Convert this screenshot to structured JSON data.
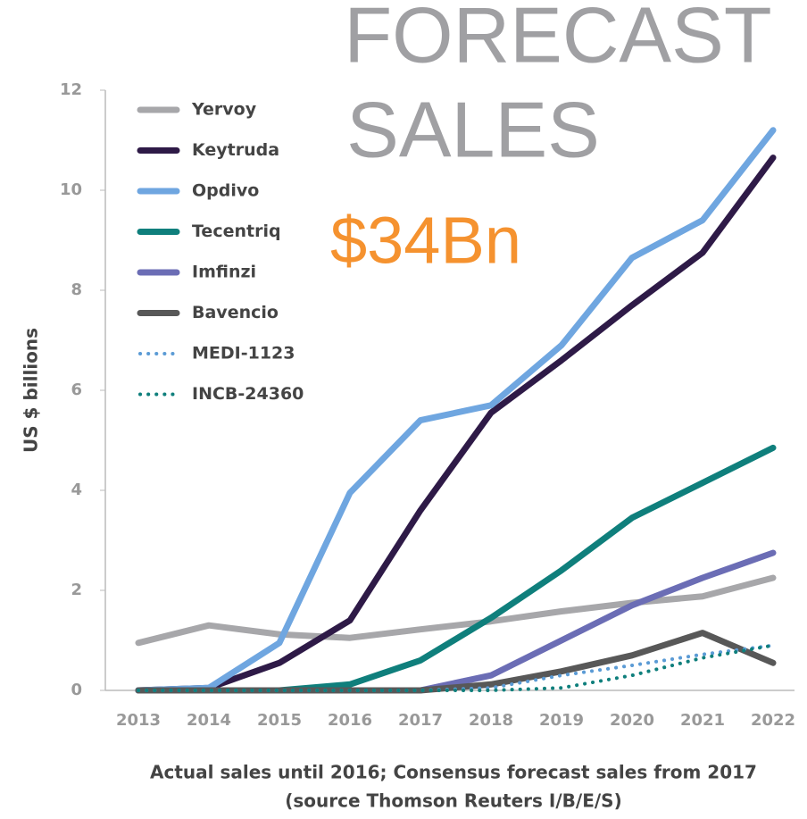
{
  "chart_data": {
    "type": "line",
    "title_lines": [
      "FORECAST",
      "SALES"
    ],
    "annotation": "$34Bn",
    "y_label": "US $ billions",
    "caption_lines": [
      "Actual sales until 2016; Consensus forecast sales from 2017",
      "(source Thomson Reuters I/B/E/S)"
    ],
    "categories": [
      "2013",
      "2014",
      "2015",
      "2016",
      "2017",
      "2018",
      "2019",
      "2020",
      "2021",
      "2022"
    ],
    "ylim": [
      0,
      12
    ],
    "yticks": [
      0,
      2,
      4,
      6,
      8,
      10,
      12
    ],
    "legend": "top-left",
    "series": [
      {
        "name": "Yervoy",
        "color": "#a7a7aa",
        "style": "solid",
        "values": [
          0.95,
          1.3,
          1.12,
          1.05,
          1.22,
          1.38,
          1.58,
          1.75,
          1.88,
          2.25
        ]
      },
      {
        "name": "Keytruda",
        "color": "#2e1a47",
        "style": "solid",
        "values": [
          0,
          0.05,
          0.55,
          1.4,
          3.6,
          5.55,
          6.6,
          7.7,
          8.75,
          10.65
        ]
      },
      {
        "name": "Opdivo",
        "color": "#6fa6e0",
        "style": "solid",
        "values": [
          0,
          0.05,
          0.95,
          3.95,
          5.4,
          5.7,
          6.9,
          8.65,
          9.4,
          11.2
        ]
      },
      {
        "name": "Tecentriq",
        "color": "#0f7f7c",
        "style": "solid",
        "values": [
          0,
          0,
          0,
          0.12,
          0.6,
          1.45,
          2.4,
          3.45,
          4.15,
          4.85
        ]
      },
      {
        "name": "Imfinzi",
        "color": "#6b6db5",
        "style": "solid",
        "values": [
          0,
          0,
          0,
          0,
          0,
          0.3,
          1.0,
          1.7,
          2.25,
          2.75
        ]
      },
      {
        "name": "Bavencio",
        "color": "#585858",
        "style": "solid",
        "values": [
          0,
          0,
          0,
          0,
          0,
          0.12,
          0.38,
          0.7,
          1.15,
          0.55
        ]
      },
      {
        "name": "MEDI-1123",
        "color": "#5b9bd5",
        "style": "dotted",
        "values": [
          0,
          0,
          0,
          0,
          0,
          0.05,
          0.3,
          0.5,
          0.72,
          0.9
        ]
      },
      {
        "name": "INCB-24360",
        "color": "#0f7f7c",
        "style": "dotted",
        "values": [
          0,
          0,
          0,
          0,
          0,
          0,
          0.05,
          0.3,
          0.65,
          0.9
        ]
      }
    ]
  }
}
